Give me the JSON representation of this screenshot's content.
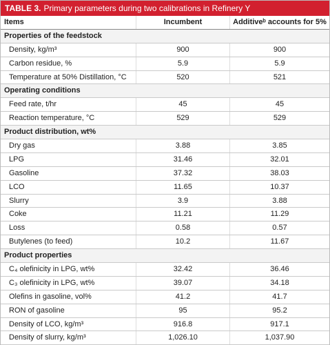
{
  "title": {
    "label": "TABLE 3.",
    "text": "Primary parameters during two calibrations in Refinery Y"
  },
  "table": {
    "header": [
      "Items",
      "Incumbent",
      "Additiveᵇ accounts for 5%"
    ],
    "sections": [
      {
        "heading": "Properties of the feedstock",
        "rows": [
          [
            "Density, kg/m³",
            "900",
            "900"
          ],
          [
            "Carbon residue, %",
            "5.9",
            "5.9"
          ],
          [
            "Temperature at 50% Distillation, °C",
            "520",
            "521"
          ]
        ]
      },
      {
        "heading": "Operating conditions",
        "rows": [
          [
            "Feed rate, t/hr",
            "45",
            "45"
          ],
          [
            "Reaction temperature, °C",
            "529",
            "529"
          ]
        ]
      },
      {
        "heading": "Product distribution, wt%",
        "rows": [
          [
            "Dry gas",
            "3.88",
            "3.85"
          ],
          [
            "LPG",
            "31.46",
            "32.01"
          ],
          [
            "Gasoline",
            "37.32",
            "38.03"
          ],
          [
            "LCO",
            "11.65",
            "10.37"
          ],
          [
            "Slurry",
            "3.9",
            "3.88"
          ],
          [
            "Coke",
            "11.21",
            "11.29"
          ],
          [
            "Loss",
            "0.58",
            "0.57"
          ],
          [
            "Butylenes (to feed)",
            "10.2",
            "11.67"
          ]
        ]
      },
      {
        "heading": "Product properties",
        "rows": [
          [
            "C₄ olefinicity in LPG, wt%",
            "32.42",
            "36.46"
          ],
          [
            "C₃ olefinicity in LPG, wt%",
            "39.07",
            "34.18"
          ],
          [
            "Olefins in gasoline, vol%",
            "41.2",
            "41.7"
          ],
          [
            "RON of gasoline",
            "95",
            "95.2"
          ],
          [
            "Density of LCO, kg/m³",
            "916.8",
            "917.1"
          ],
          [
            "Density of slurry, kg/m³",
            "1,026.10",
            "1,037.90"
          ]
        ]
      }
    ]
  }
}
